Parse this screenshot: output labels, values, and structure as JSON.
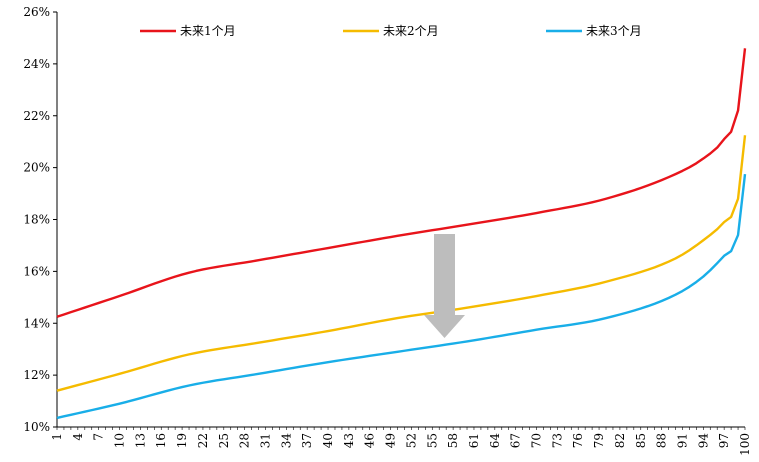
{
  "chart_data": {
    "type": "line",
    "title": "",
    "xlabel": "",
    "ylabel": "",
    "x_start": 1,
    "x_end": 100,
    "x_tick_labels": [
      "1",
      "4",
      "7",
      "10",
      "13",
      "16",
      "19",
      "22",
      "25",
      "28",
      "31",
      "34",
      "37",
      "40",
      "43",
      "46",
      "49",
      "52",
      "55",
      "58",
      "61",
      "64",
      "67",
      "70",
      "73",
      "76",
      "79",
      "82",
      "85",
      "88",
      "91",
      "94",
      "97",
      "100"
    ],
    "ylim": [
      0.1,
      0.26
    ],
    "y_ticks": [
      0.1,
      0.12,
      0.14,
      0.16,
      0.18,
      0.2,
      0.22,
      0.24,
      0.26
    ],
    "y_tick_labels": [
      "10%",
      "12%",
      "14%",
      "16%",
      "18%",
      "20%",
      "22%",
      "24%",
      "26%"
    ],
    "legend_position": "top",
    "annotation": "down-arrow",
    "series": [
      {
        "name": "未来1个月",
        "color": "#e8141b",
        "points": [
          [
            1,
            0.1425
          ],
          [
            10,
            0.1505
          ],
          [
            20,
            0.1595
          ],
          [
            30,
            0.1643
          ],
          [
            40,
            0.169
          ],
          [
            50,
            0.1737
          ],
          [
            60,
            0.178
          ],
          [
            70,
            0.1825
          ],
          [
            80,
            0.188
          ],
          [
            90,
            0.1975
          ],
          [
            94,
            0.2035
          ],
          [
            97,
            0.211
          ],
          [
            99,
            0.222
          ],
          [
            100,
            0.246
          ]
        ]
      },
      {
        "name": "未来2个月",
        "color": "#f5bb00",
        "points": [
          [
            1,
            0.114
          ],
          [
            10,
            0.1205
          ],
          [
            20,
            0.128
          ],
          [
            30,
            0.1325
          ],
          [
            40,
            0.137
          ],
          [
            50,
            0.142
          ],
          [
            60,
            0.146
          ],
          [
            70,
            0.1505
          ],
          [
            80,
            0.156
          ],
          [
            90,
            0.165
          ],
          [
            94,
            0.172
          ],
          [
            97,
            0.179
          ],
          [
            99,
            0.188
          ],
          [
            100,
            0.2125
          ]
        ]
      },
      {
        "name": "未来3个月",
        "color": "#19aee8",
        "points": [
          [
            1,
            0.1035
          ],
          [
            10,
            0.109
          ],
          [
            20,
            0.116
          ],
          [
            30,
            0.1205
          ],
          [
            40,
            0.125
          ],
          [
            50,
            0.129
          ],
          [
            60,
            0.133
          ],
          [
            70,
            0.1375
          ],
          [
            80,
            0.142
          ],
          [
            90,
            0.151
          ],
          [
            94,
            0.158
          ],
          [
            97,
            0.166
          ],
          [
            99,
            0.174
          ],
          [
            100,
            0.1975
          ]
        ]
      }
    ]
  }
}
